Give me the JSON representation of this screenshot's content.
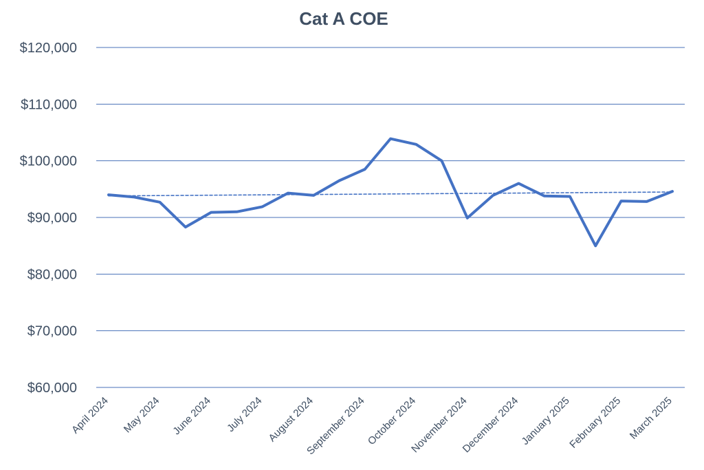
{
  "chart_data": {
    "type": "line",
    "title": "Cat A COE",
    "xlabel": "",
    "ylabel": "",
    "ylim": [
      60000,
      120000
    ],
    "y_ticks": [
      60000,
      70000,
      80000,
      90000,
      100000,
      110000,
      120000
    ],
    "y_tick_labels": [
      "$60,000",
      "$70,000",
      "$80,000",
      "$90,000",
      "$100,000",
      "$110,000",
      "$120,000"
    ],
    "x_tick_labels": [
      "April 2024",
      "May 2024",
      "June 2024",
      "July 2024",
      "August 2024",
      "September 2024",
      "October 2024",
      "November 2024",
      "December 2024",
      "January 2025",
      "February 2025",
      "March 2025"
    ],
    "grid": true,
    "legend": "none",
    "series": [
      {
        "style": "solid",
        "color": "#4472c4",
        "values": [
          94000,
          93600,
          92700,
          88300,
          90900,
          91000,
          91900,
          94300,
          93900,
          96500,
          98500,
          103900,
          102900,
          100000,
          89900,
          93900,
          96000,
          93800,
          93700,
          85000,
          92900,
          92800,
          94600
        ]
      },
      {
        "style": "dashed",
        "trendline": "linear",
        "color": "#4472c4",
        "values": [
          93800,
          94500
        ]
      }
    ]
  }
}
